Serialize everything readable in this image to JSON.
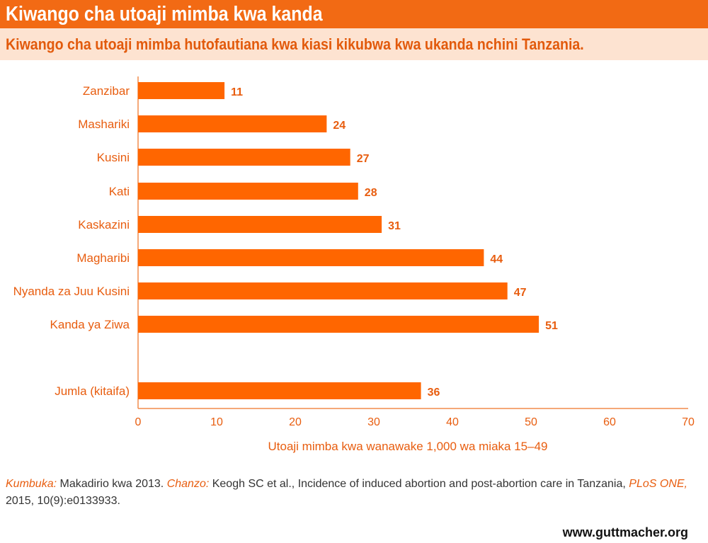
{
  "header": {
    "title": "Kiwango cha utoaji mimba kwa kanda",
    "subtitle": "Kiwango cha utoaji mimba hutofautiana kwa kiasi kikubwa kwa ukanda nchini Tanzania."
  },
  "chart_data": {
    "type": "bar",
    "orientation": "horizontal",
    "title": "Kiwango cha utoaji mimba kwa kanda",
    "subtitle": "Kiwango cha utoaji mimba hutofautiana kwa kiasi kikubwa kwa ukanda nchini Tanzania.",
    "categories": [
      "Zanzibar",
      "Mashariki",
      "Kusini",
      "Kati",
      "Kaskazini",
      "Magharibi",
      "Nyanda za Juu Kusini",
      "Kanda ya Ziwa",
      "Jumla (kitaifa)"
    ],
    "values": [
      11,
      24,
      27,
      28,
      31,
      44,
      47,
      51,
      36
    ],
    "xlabel": "Utoaji mimba kwa wanawake 1,000 wa miaka 15–49",
    "ylabel": "",
    "xlim": [
      0,
      70
    ],
    "xticks": [
      0,
      10,
      20,
      30,
      40,
      50,
      60,
      70
    ],
    "grid": false,
    "legend": "none",
    "colors": {
      "bar": "#ff6600",
      "text": "#e85d0f",
      "axis": "#f28c4c",
      "title_bg": "#f26a14",
      "subtitle_bg": "#fde3d1"
    }
  },
  "footer": {
    "note_label": "Kumbuka:",
    "note_text": " Makadirio kwa 2013. ",
    "source_label": "Chanzo:",
    "source_text": " Keogh SC et al., Incidence of induced abortion and post-abortion care in Tanzania, ",
    "journal": "PLoS ONE,",
    "citation": " 2015, 10(9):e0133933.",
    "website": "www.guttmacher.org"
  }
}
